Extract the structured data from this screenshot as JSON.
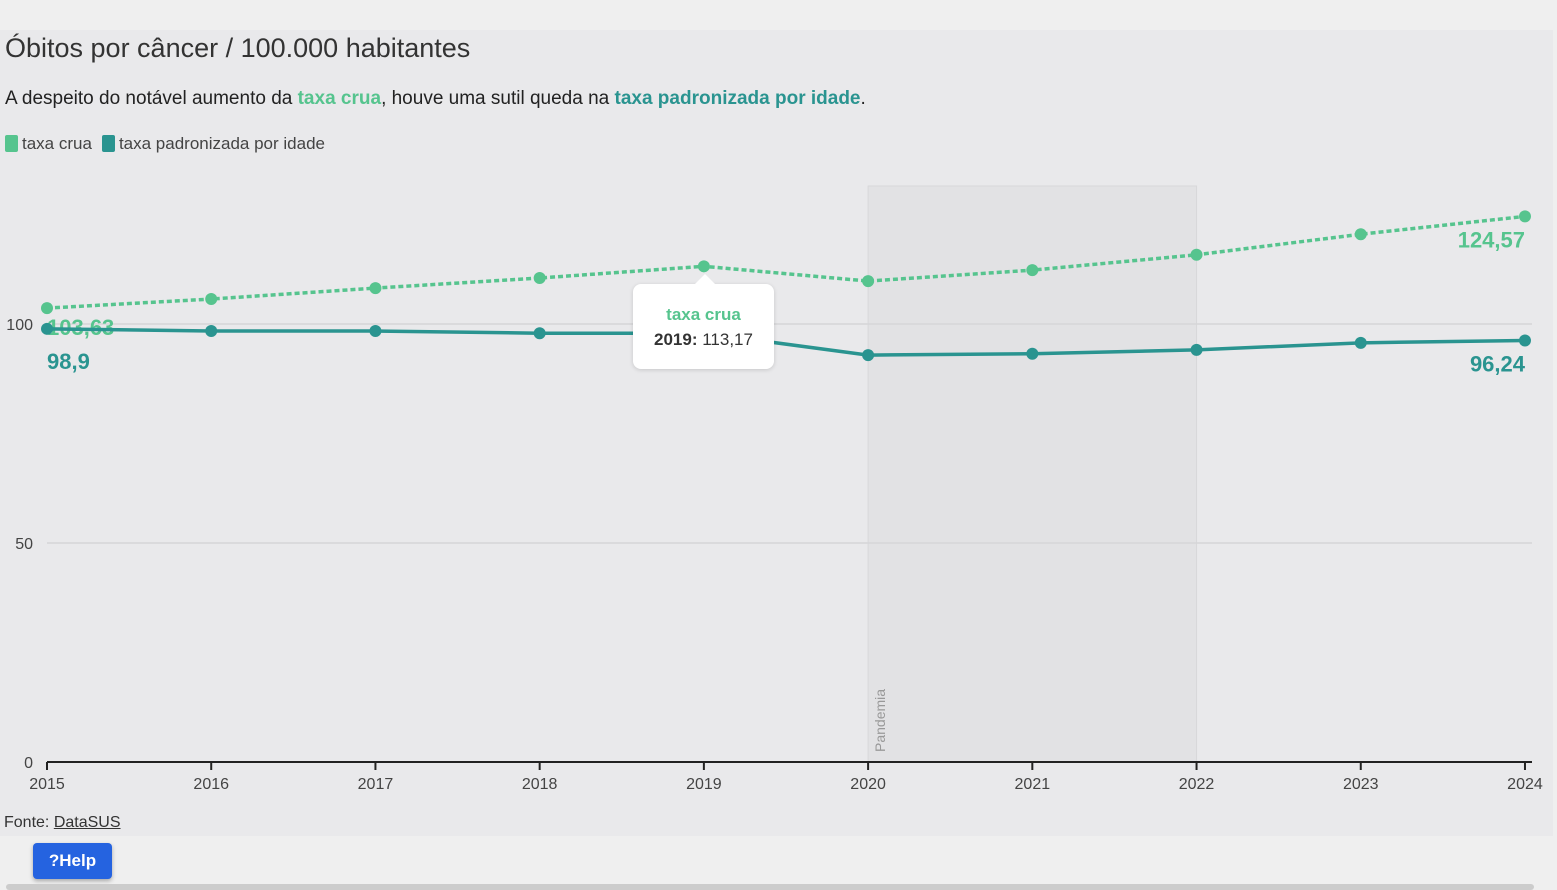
{
  "title": "Óbitos por câncer / 100.000 habitantes",
  "subtitle": {
    "pre": "A despeito do notável aumento da ",
    "hl1": "taxa crua",
    "mid": ", houve uma sutil queda na ",
    "hl2": "taxa padronizada por idade",
    "post": "."
  },
  "source": {
    "label": "Fonte:",
    "link": "DataSUS"
  },
  "help_label": "Help",
  "tooltip": {
    "series": "taxa crua",
    "year": "2019:",
    "value": "113,17"
  },
  "chart_data": {
    "type": "line",
    "title": "Óbitos por câncer / 100.000 habitantes",
    "x": [
      2015,
      2016,
      2017,
      2018,
      2019,
      2020,
      2021,
      2022,
      2023,
      2024
    ],
    "ylim": [
      0,
      131
    ],
    "yticks": [
      0,
      50,
      100
    ],
    "series": [
      {
        "name": "taxa crua",
        "color": "#56c48e",
        "style": "dotted",
        "values": [
          103.63,
          105.7,
          108.2,
          110.5,
          113.17,
          109.8,
          112.3,
          115.8,
          120.5,
          124.57
        ],
        "start_label": "103,63",
        "end_label": "124,57"
      },
      {
        "name": "taxa padronizada por idade",
        "color": "#2a9490",
        "style": "solid",
        "values": [
          98.9,
          98.4,
          98.4,
          97.9,
          97.9,
          92.9,
          93.2,
          94.1,
          95.7,
          96.24
        ],
        "start_label": "98,9",
        "end_label": "96,24"
      }
    ],
    "annotation": {
      "label": "Pandemia",
      "from": 2020,
      "to": 2022
    }
  }
}
